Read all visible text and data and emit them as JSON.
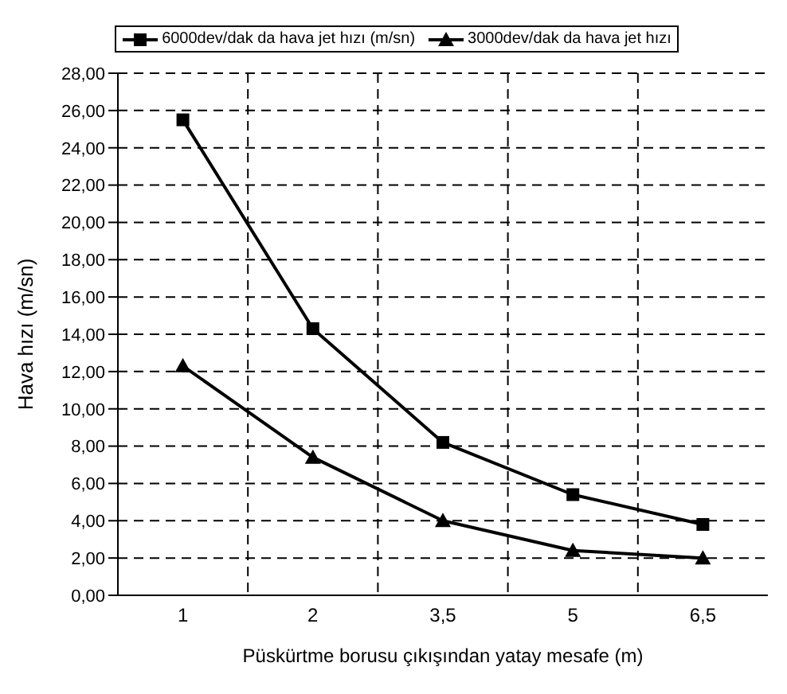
{
  "chart_data": {
    "type": "line",
    "xlabel": "Püskürtme borusu çıkışından yatay mesafe (m)",
    "ylabel": "Hava hızı (m/sn)",
    "categories": [
      "1",
      "2",
      "3,5",
      "5",
      "6,5"
    ],
    "series": [
      {
        "name": "6000dev/dak da hava jet hızı (m/sn)",
        "color": "#000000",
        "marker": "square",
        "values": [
          25.5,
          14.3,
          8.2,
          5.4,
          3.8
        ]
      },
      {
        "name": "3000dev/dak da hava jet hızı",
        "color": "#000000",
        "marker": "triangle",
        "values": [
          12.3,
          7.4,
          4.0,
          2.4,
          2.0
        ]
      }
    ],
    "ylim": [
      0,
      28
    ],
    "yticks": [
      {
        "value": 0,
        "label": "0,00"
      },
      {
        "value": 2,
        "label": "2,00"
      },
      {
        "value": 4,
        "label": "4,00"
      },
      {
        "value": 6,
        "label": "6,00"
      },
      {
        "value": 8,
        "label": "8,00"
      },
      {
        "value": 10,
        "label": "10,00"
      },
      {
        "value": 12,
        "label": "12,00"
      },
      {
        "value": 14,
        "label": "14,00"
      },
      {
        "value": 16,
        "label": "16,00"
      },
      {
        "value": 18,
        "label": "18,00"
      },
      {
        "value": 20,
        "label": "20,00"
      },
      {
        "value": 22,
        "label": "22,00"
      },
      {
        "value": 24,
        "label": "24,00"
      },
      {
        "value": 26,
        "label": "26,00"
      },
      {
        "value": 28,
        "label": "28,00"
      }
    ],
    "grid": true,
    "line_style": "solid",
    "legend": "top"
  }
}
